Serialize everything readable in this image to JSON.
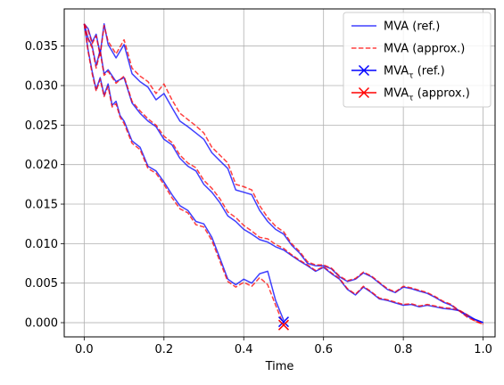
{
  "chart_data": {
    "type": "line",
    "title": "",
    "xlabel": "Time",
    "ylabel": "",
    "xlim": [
      -0.05,
      1.03
    ],
    "ylim": [
      -0.0018,
      0.0397
    ],
    "grid": true,
    "legend_position": "top-right",
    "x_ticks": [
      0.0,
      0.2,
      0.4,
      0.6,
      0.8,
      1.0
    ],
    "x_tick_labels": [
      "0.0",
      "0.2",
      "0.4",
      "0.6",
      "0.8",
      "1.0"
    ],
    "y_ticks": [
      0.0,
      0.005,
      0.01,
      0.015,
      0.02,
      0.025,
      0.03,
      0.035
    ],
    "y_tick_labels": [
      "0.000",
      "0.005",
      "0.010",
      "0.015",
      "0.020",
      "0.025",
      "0.030",
      "0.035"
    ],
    "legend": [
      {
        "label": "MVA (ref.)",
        "color": "#0000ff",
        "style": "solid",
        "marker": "none"
      },
      {
        "label": "MVA (approx.)",
        "color": "#ff0000",
        "style": "dashed",
        "marker": "none"
      },
      {
        "label": "MVA",
        "subscript": "τ",
        "suffix": " (ref.)",
        "color": "#0000ff",
        "style": "solid",
        "marker": "x"
      },
      {
        "label": "MVA",
        "subscript": "τ",
        "suffix": " (approx.)",
        "color": "#ff0000",
        "style": "solid",
        "marker": "x"
      }
    ],
    "series": [
      {
        "kind": "ref",
        "path": 1,
        "color": "#0000ff",
        "dashed": false,
        "x": [
          0.0,
          0.01,
          0.02,
          0.03,
          0.04,
          0.05,
          0.06,
          0.07,
          0.08,
          0.09,
          0.1,
          0.12,
          0.14,
          0.16,
          0.18,
          0.2,
          0.22,
          0.24,
          0.26,
          0.28,
          0.3,
          0.32,
          0.34,
          0.36,
          0.38,
          0.4,
          0.42,
          0.44,
          0.46,
          0.48,
          0.5
        ],
        "y": [
          0.0378,
          0.0345,
          0.0318,
          0.0295,
          0.031,
          0.0288,
          0.0302,
          0.0275,
          0.028,
          0.0262,
          0.0255,
          0.023,
          0.0222,
          0.0198,
          0.0192,
          0.0178,
          0.0162,
          0.0148,
          0.0142,
          0.0128,
          0.0125,
          0.0108,
          0.0082,
          0.0055,
          0.0048,
          0.0055,
          0.005,
          0.0062,
          0.0065,
          0.0028,
          0.0003
        ]
      },
      {
        "kind": "approx",
        "path": 1,
        "color": "#ff0000",
        "dashed": true,
        "x": [
          0.0,
          0.01,
          0.02,
          0.03,
          0.04,
          0.05,
          0.06,
          0.07,
          0.08,
          0.09,
          0.1,
          0.12,
          0.14,
          0.16,
          0.18,
          0.2,
          0.22,
          0.24,
          0.26,
          0.28,
          0.3,
          0.32,
          0.34,
          0.36,
          0.38,
          0.4,
          0.42,
          0.44,
          0.46,
          0.48,
          0.5
        ],
        "y": [
          0.0378,
          0.0343,
          0.0315,
          0.0293,
          0.0308,
          0.0286,
          0.0299,
          0.0273,
          0.0277,
          0.026,
          0.0252,
          0.0227,
          0.0219,
          0.0195,
          0.0189,
          0.0175,
          0.0158,
          0.0144,
          0.0139,
          0.0124,
          0.0121,
          0.0104,
          0.0078,
          0.0052,
          0.0045,
          0.0051,
          0.0046,
          0.0057,
          0.0048,
          0.0022,
          -0.0003
        ]
      },
      {
        "kind": "ref",
        "path": 2,
        "color": "#0000ff",
        "dashed": false,
        "x": [
          0.0,
          0.01,
          0.02,
          0.03,
          0.04,
          0.05,
          0.06,
          0.08,
          0.1,
          0.12,
          0.14,
          0.16,
          0.18,
          0.2,
          0.22,
          0.24,
          0.26,
          0.28,
          0.3,
          0.32,
          0.34,
          0.36,
          0.38,
          0.4,
          0.42,
          0.44,
          0.46,
          0.48,
          0.5,
          0.52,
          0.54,
          0.56,
          0.58,
          0.6,
          0.62,
          0.64,
          0.66,
          0.68,
          0.7,
          0.72,
          0.74,
          0.76,
          0.78,
          0.8,
          0.82,
          0.84,
          0.86,
          0.88,
          0.9,
          0.92,
          0.94,
          0.96,
          0.98,
          1.0
        ],
        "y": [
          0.0378,
          0.036,
          0.035,
          0.0325,
          0.0345,
          0.0315,
          0.032,
          0.0305,
          0.031,
          0.0278,
          0.0265,
          0.0255,
          0.0248,
          0.0232,
          0.0225,
          0.0208,
          0.0198,
          0.0192,
          0.0175,
          0.0165,
          0.0152,
          0.0135,
          0.0128,
          0.0118,
          0.0112,
          0.0105,
          0.0102,
          0.0096,
          0.0092,
          0.0085,
          0.0078,
          0.0072,
          0.0065,
          0.007,
          0.0062,
          0.0055,
          0.0042,
          0.0035,
          0.0045,
          0.0038,
          0.003,
          0.0028,
          0.0025,
          0.0022,
          0.0023,
          0.002,
          0.0022,
          0.002,
          0.0018,
          0.0017,
          0.0015,
          0.001,
          0.0004,
          0.0
        ]
      },
      {
        "kind": "approx",
        "path": 2,
        "color": "#ff0000",
        "dashed": true,
        "x": [
          0.0,
          0.01,
          0.02,
          0.03,
          0.04,
          0.05,
          0.06,
          0.08,
          0.1,
          0.12,
          0.14,
          0.16,
          0.18,
          0.2,
          0.22,
          0.24,
          0.26,
          0.28,
          0.3,
          0.32,
          0.34,
          0.36,
          0.38,
          0.4,
          0.42,
          0.44,
          0.46,
          0.48,
          0.5,
          0.52,
          0.54,
          0.56,
          0.58,
          0.6,
          0.62,
          0.64,
          0.66,
          0.68,
          0.7,
          0.72,
          0.74,
          0.76,
          0.78,
          0.8,
          0.82,
          0.84,
          0.86,
          0.88,
          0.9,
          0.92,
          0.94,
          0.96,
          0.98,
          1.0
        ],
        "y": [
          0.0378,
          0.0358,
          0.0348,
          0.0322,
          0.0343,
          0.0313,
          0.0318,
          0.0303,
          0.0312,
          0.028,
          0.0268,
          0.0258,
          0.025,
          0.0236,
          0.0228,
          0.0212,
          0.0202,
          0.0196,
          0.018,
          0.017,
          0.0157,
          0.014,
          0.0133,
          0.0123,
          0.0116,
          0.0108,
          0.0106,
          0.0099,
          0.0094,
          0.0086,
          0.0079,
          0.0073,
          0.0066,
          0.0071,
          0.0063,
          0.0056,
          0.0043,
          0.0036,
          0.0046,
          0.0039,
          0.0031,
          0.0029,
          0.0026,
          0.0023,
          0.0024,
          0.0021,
          0.0023,
          0.0021,
          0.0019,
          0.0018,
          0.0016,
          0.001,
          0.0002,
          -0.0002
        ]
      },
      {
        "kind": "ref",
        "path": 3,
        "color": "#0000ff",
        "dashed": false,
        "x": [
          0.0,
          0.01,
          0.02,
          0.03,
          0.04,
          0.05,
          0.06,
          0.08,
          0.1,
          0.12,
          0.14,
          0.16,
          0.18,
          0.2,
          0.22,
          0.24,
          0.26,
          0.28,
          0.3,
          0.32,
          0.34,
          0.36,
          0.38,
          0.4,
          0.42,
          0.44,
          0.46,
          0.48,
          0.5,
          0.52,
          0.54,
          0.56,
          0.58,
          0.6,
          0.62,
          0.64,
          0.66,
          0.68,
          0.7,
          0.72,
          0.74,
          0.76,
          0.78,
          0.8,
          0.82,
          0.84,
          0.86,
          0.88,
          0.9,
          0.92,
          0.94,
          0.96,
          0.98,
          1.0
        ],
        "y": [
          0.0378,
          0.0372,
          0.0355,
          0.0365,
          0.034,
          0.0378,
          0.0352,
          0.0335,
          0.0352,
          0.0315,
          0.0305,
          0.0298,
          0.0282,
          0.029,
          0.0272,
          0.0255,
          0.0248,
          0.024,
          0.0232,
          0.0215,
          0.0205,
          0.0195,
          0.0168,
          0.0165,
          0.0162,
          0.0142,
          0.0128,
          0.0118,
          0.0112,
          0.0098,
          0.0088,
          0.0075,
          0.0072,
          0.0072,
          0.0068,
          0.0058,
          0.0052,
          0.0055,
          0.0063,
          0.0058,
          0.005,
          0.0042,
          0.0038,
          0.0045,
          0.0043,
          0.004,
          0.0037,
          0.0032,
          0.0026,
          0.0022,
          0.0015,
          0.0008,
          0.0004,
          0.0
        ]
      },
      {
        "kind": "approx",
        "path": 3,
        "color": "#ff0000",
        "dashed": true,
        "x": [
          0.0,
          0.01,
          0.02,
          0.03,
          0.04,
          0.05,
          0.06,
          0.08,
          0.1,
          0.12,
          0.14,
          0.16,
          0.18,
          0.2,
          0.22,
          0.24,
          0.26,
          0.28,
          0.3,
          0.32,
          0.34,
          0.36,
          0.38,
          0.4,
          0.42,
          0.44,
          0.46,
          0.48,
          0.5,
          0.52,
          0.54,
          0.56,
          0.58,
          0.6,
          0.62,
          0.64,
          0.66,
          0.68,
          0.7,
          0.72,
          0.74,
          0.76,
          0.78,
          0.8,
          0.82,
          0.84,
          0.86,
          0.88,
          0.9,
          0.92,
          0.94,
          0.96,
          0.98,
          1.0
        ],
        "y": [
          0.0378,
          0.037,
          0.0353,
          0.0363,
          0.0338,
          0.0376,
          0.0356,
          0.034,
          0.0358,
          0.0322,
          0.0312,
          0.0305,
          0.029,
          0.0302,
          0.0282,
          0.0265,
          0.0257,
          0.0249,
          0.024,
          0.0222,
          0.0212,
          0.0202,
          0.0175,
          0.0172,
          0.0168,
          0.0148,
          0.0133,
          0.0122,
          0.0115,
          0.01,
          0.009,
          0.0077,
          0.0073,
          0.0073,
          0.0069,
          0.0059,
          0.0053,
          0.0056,
          0.0064,
          0.0059,
          0.0051,
          0.0043,
          0.0039,
          0.0046,
          0.0044,
          0.0041,
          0.0038,
          0.0033,
          0.0027,
          0.0023,
          0.0015,
          0.0007,
          0.0002,
          -0.0002
        ]
      }
    ],
    "markers": [
      {
        "kind": "ref",
        "color": "#0000ff",
        "x": 0.5,
        "y": 0.0001
      },
      {
        "kind": "approx",
        "color": "#ff0000",
        "x": 0.5,
        "y": -0.0003
      }
    ]
  }
}
